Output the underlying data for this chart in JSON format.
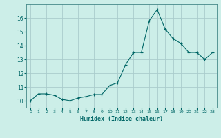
{
  "x": [
    0,
    1,
    2,
    3,
    4,
    5,
    6,
    7,
    8,
    9,
    10,
    11,
    12,
    13,
    14,
    15,
    16,
    17,
    18,
    19,
    20,
    21,
    22,
    23
  ],
  "y": [
    10.0,
    10.5,
    10.5,
    10.4,
    10.1,
    10.0,
    10.2,
    10.3,
    10.45,
    10.45,
    11.1,
    11.3,
    12.6,
    13.5,
    13.5,
    15.8,
    16.6,
    15.2,
    14.5,
    14.15,
    13.5,
    13.5,
    13.0,
    13.5
  ],
  "xlim": [
    -0.5,
    23.5
  ],
  "ylim": [
    9.5,
    17.0
  ],
  "yticks": [
    10,
    11,
    12,
    13,
    14,
    15,
    16
  ],
  "xticks": [
    0,
    1,
    2,
    3,
    4,
    5,
    6,
    7,
    8,
    9,
    10,
    11,
    12,
    13,
    14,
    15,
    16,
    17,
    18,
    19,
    20,
    21,
    22,
    23
  ],
  "xlabel": "Humidex (Indice chaleur)",
  "line_color": "#006666",
  "marker": "+",
  "bg_color": "#cceee8",
  "grid_color": "#aacccc",
  "spine_color": "#448888"
}
